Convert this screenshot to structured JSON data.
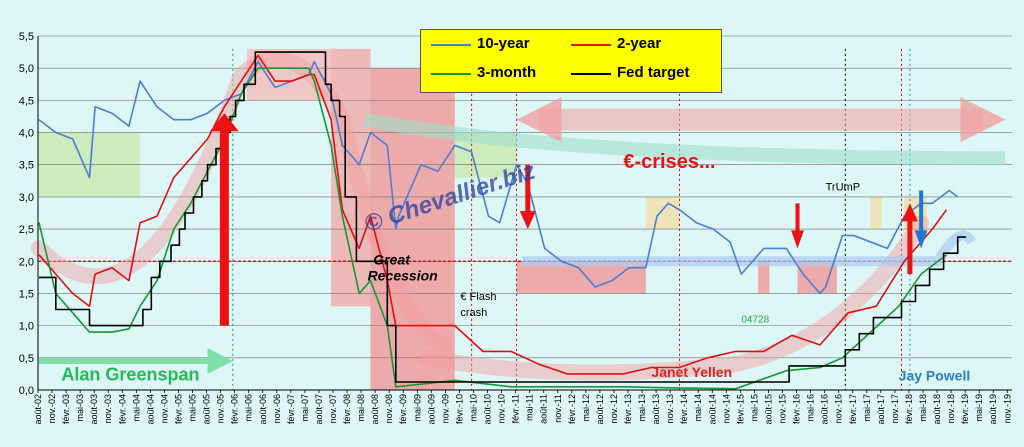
{
  "chart_data": {
    "type": "line",
    "title": "",
    "ylim": [
      0,
      5.5
    ],
    "y_ticks": [
      "0,0",
      "0,5",
      "1,0",
      "1,5",
      "2,0",
      "2,5",
      "3,0",
      "3,5",
      "4,0",
      "4,5",
      "5,0",
      "5,5"
    ],
    "x_tick_labels": [
      "août-02",
      "févr.-03",
      "août-03",
      "févr.-04",
      "août-04",
      "févr.-05",
      "août-05",
      "févr.-06",
      "août-06",
      "févr.-07",
      "août-07",
      "févr.-08",
      "août-08",
      "févr.-09",
      "août-09",
      "févr.-10",
      "août-10",
      "févr.-11",
      "août-11",
      "févr.-12",
      "août-12",
      "févr.-13",
      "août-13",
      "févr.-14",
      "août-14",
      "févr.-15",
      "août-15",
      "févr.-16",
      "août-16",
      "févr.-17",
      "août-17",
      "févr.-18",
      "août-18",
      "févr.-19",
      "août-19"
    ],
    "x_tick_labels_b": [
      "nov.-02",
      "mai-03",
      "nov.-03",
      "mai-04",
      "nov.-04",
      "mai-05",
      "nov.-05",
      "mai-06",
      "nov.-06",
      "mai-07",
      "nov.-07",
      "mai-08",
      "nov.-08",
      "mai-09",
      "nov.-09",
      "mai-10",
      "nov.-10",
      "mai-11",
      "nov.-11",
      "mai-12",
      "nov.-12",
      "mai-13",
      "nov.-13",
      "mai-14",
      "nov.-14",
      "mai-15",
      "nov.-15",
      "mai-16",
      "nov.-16",
      "mai-17",
      "nov.-17",
      "mai-18",
      "nov.-18",
      "mai-19",
      "nov.-19"
    ],
    "series": [
      {
        "name": "10-year",
        "color": "#4a7fd8",
        "x": [
          2002.6,
          2002.9,
          2003.2,
          2003.5,
          2003.6,
          2003.9,
          2004.2,
          2004.4,
          2004.7,
          2005.0,
          2005.3,
          2005.6,
          2005.9,
          2006.2,
          2006.5,
          2006.8,
          2007.1,
          2007.4,
          2007.5,
          2007.8,
          2008.0,
          2008.3,
          2008.5,
          2008.8,
          2008.95,
          2009.0,
          2009.4,
          2009.7,
          2010.0,
          2010.3,
          2010.6,
          2010.8,
          2011.1,
          2011.3,
          2011.6,
          2011.9,
          2012.2,
          2012.5,
          2012.8,
          2013.1,
          2013.4,
          2013.6,
          2013.8,
          2014.0,
          2014.3,
          2014.6,
          2014.9,
          2015.1,
          2015.5,
          2015.9,
          2016.2,
          2016.5,
          2016.6,
          2016.9,
          2017.1,
          2017.4,
          2017.7,
          2018.0,
          2018.3,
          2018.5,
          2018.8,
          2018.95
        ],
        "y": [
          4.2,
          4.0,
          3.9,
          3.3,
          4.4,
          4.3,
          4.1,
          4.8,
          4.4,
          4.2,
          4.2,
          4.3,
          4.5,
          4.6,
          5.1,
          4.7,
          4.8,
          4.9,
          5.1,
          4.6,
          3.8,
          3.5,
          4.0,
          3.8,
          2.5,
          2.7,
          3.5,
          3.4,
          3.8,
          3.7,
          2.7,
          2.6,
          3.5,
          3.2,
          2.2,
          2.0,
          1.9,
          1.6,
          1.7,
          1.9,
          1.9,
          2.7,
          2.9,
          2.8,
          2.6,
          2.5,
          2.3,
          1.8,
          2.2,
          2.2,
          1.8,
          1.5,
          1.6,
          2.4,
          2.4,
          2.3,
          2.2,
          2.7,
          2.9,
          2.9,
          3.1,
          3.0
        ]
      },
      {
        "name": "2-year",
        "color": "#e01010",
        "x": [
          2002.6,
          2002.9,
          2003.2,
          2003.5,
          2003.6,
          2003.9,
          2004.2,
          2004.4,
          2004.7,
          2005.0,
          2005.3,
          2005.6,
          2005.9,
          2006.2,
          2006.5,
          2006.8,
          2007.1,
          2007.4,
          2007.5,
          2007.8,
          2008.0,
          2008.3,
          2008.5,
          2008.8,
          2008.95,
          2009.5,
          2010.0,
          2010.5,
          2011.0,
          2011.5,
          2012.0,
          2012.5,
          2013.0,
          2013.5,
          2014.0,
          2014.5,
          2015.0,
          2015.5,
          2016.0,
          2016.5,
          2017.0,
          2017.5,
          2018.0,
          2018.5,
          2018.75
        ],
        "y": [
          2.1,
          1.8,
          1.5,
          1.3,
          1.8,
          1.9,
          1.7,
          2.6,
          2.7,
          3.3,
          3.6,
          3.9,
          4.4,
          4.8,
          5.2,
          4.8,
          4.8,
          4.9,
          4.9,
          4.2,
          2.8,
          2.2,
          2.7,
          1.7,
          1.0,
          1.0,
          1.0,
          0.6,
          0.6,
          0.4,
          0.25,
          0.25,
          0.25,
          0.35,
          0.35,
          0.5,
          0.6,
          0.6,
          0.85,
          0.7,
          1.2,
          1.3,
          2.0,
          2.5,
          2.8
        ]
      },
      {
        "name": "3-month",
        "color": "#119933",
        "x": [
          2002.6,
          2002.9,
          2003.2,
          2003.5,
          2003.9,
          2004.2,
          2004.4,
          2004.7,
          2005.0,
          2005.3,
          2005.6,
          2005.9,
          2006.2,
          2006.5,
          2006.8,
          2007.1,
          2007.4,
          2007.5,
          2007.8,
          2008.0,
          2008.3,
          2008.5,
          2008.8,
          2008.95,
          2009.5,
          2010.0,
          2011.0,
          2012.0,
          2013.0,
          2014.0,
          2015.0,
          2015.9,
          2016.5,
          2016.9,
          2017.4,
          2017.9,
          2018.3,
          2018.75
        ],
        "y": [
          2.6,
          1.5,
          1.2,
          0.9,
          0.9,
          0.95,
          1.3,
          1.7,
          2.5,
          2.9,
          3.4,
          3.9,
          4.6,
          5.0,
          5.0,
          5.0,
          5.0,
          4.8,
          3.8,
          2.7,
          1.5,
          1.7,
          1.0,
          0.05,
          0.1,
          0.15,
          0.05,
          0.05,
          0.05,
          0.03,
          0.02,
          0.3,
          0.35,
          0.5,
          0.9,
          1.3,
          1.8,
          2.1
        ]
      },
      {
        "name": "Fed target",
        "color": "#000000",
        "x": [
          2002.6,
          2002.9,
          2002.9,
          2003.5,
          2003.5,
          2004.45,
          2004.45,
          2004.6,
          2004.6,
          2004.75,
          2004.75,
          2004.95,
          2004.95,
          2005.1,
          2005.1,
          2005.2,
          2005.2,
          2005.35,
          2005.35,
          2005.5,
          2005.5,
          2005.6,
          2005.6,
          2005.75,
          2005.75,
          2005.85,
          2005.85,
          2006.0,
          2006.0,
          2006.1,
          2006.1,
          2006.25,
          2006.25,
          2006.45,
          2006.45,
          2007.7,
          2007.7,
          2007.8,
          2007.8,
          2007.95,
          2007.95,
          2008.05,
          2008.05,
          2008.25,
          2008.25,
          2008.8,
          2008.8,
          2008.95,
          2008.95,
          2015.95,
          2015.95,
          2016.95,
          2016.95,
          2017.2,
          2017.2,
          2017.45,
          2017.45,
          2017.95,
          2017.95,
          2018.2,
          2018.2,
          2018.45,
          2018.45,
          2018.7,
          2018.7,
          2018.95,
          2018.95,
          2019.1
        ],
        "y": [
          1.75,
          1.75,
          1.25,
          1.25,
          1.0,
          1.0,
          1.25,
          1.25,
          1.75,
          1.75,
          2.0,
          2.0,
          2.25,
          2.25,
          2.5,
          2.5,
          2.75,
          2.75,
          3.0,
          3.0,
          3.25,
          3.25,
          3.5,
          3.5,
          3.75,
          3.75,
          4.0,
          4.0,
          4.25,
          4.25,
          4.5,
          4.5,
          4.75,
          4.75,
          5.25,
          5.25,
          4.75,
          4.75,
          4.5,
          4.5,
          4.25,
          4.25,
          3.0,
          3.0,
          2.0,
          2.0,
          1.0,
          1.0,
          0.125,
          0.125,
          0.375,
          0.375,
          0.625,
          0.625,
          0.875,
          0.875,
          1.125,
          1.125,
          1.375,
          1.375,
          1.625,
          1.625,
          1.875,
          1.875,
          2.125,
          2.125,
          2.375,
          2.375
        ]
      }
    ],
    "annotations": [
      "€-crises...",
      "Great Recession",
      "€ Flash crash",
      "04728",
      "TrUmP",
      "Alan Greenspan",
      "Janet Yellen",
      "Jay Powell",
      "© Chevallier.biz"
    ]
  },
  "legend": {
    "l10": "10-year",
    "l2": "2-year",
    "l3": "3-month",
    "lfed": "Fed target"
  },
  "colors": {
    "bg": "#ddf6f6",
    "legend_bg": "#ffff00"
  }
}
